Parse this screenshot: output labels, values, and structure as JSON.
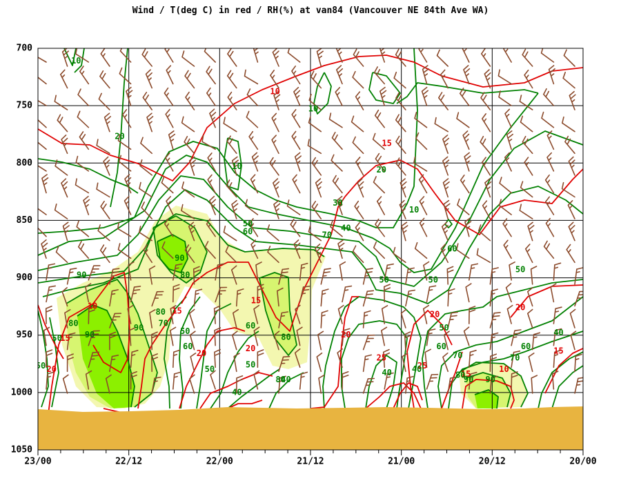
{
  "chart_data": {
    "type": "contour",
    "title": "Wind / T(deg C) in red / RH(%) at van84 (Vancouver NE 84th Ave WA)",
    "y_axis": {
      "ticks": [
        700,
        750,
        800,
        850,
        900,
        950,
        1000,
        1050
      ],
      "ylim": [
        700,
        1050
      ],
      "inverted": true
    },
    "x_axis": {
      "ticks": [
        "23/00",
        "22/12",
        "22/00",
        "21/12",
        "21/00",
        "20/12",
        "20/00"
      ]
    },
    "grid": true,
    "colors": {
      "temperature": "#e00000",
      "rh": "#008000",
      "wind": "#8b4a2b",
      "ground": "#e8b440",
      "fill_70": "#f3f7b0",
      "fill_80": "#d7f570",
      "fill_90": "#8cf000"
    },
    "temperature_labels": [
      {
        "text": "10",
        "t": 0.1,
        "p": 925
      },
      {
        "text": "15",
        "t": 0.05,
        "p": 953
      },
      {
        "text": "20",
        "t": 0.025,
        "p": 980
      },
      {
        "text": "15",
        "t": 0.255,
        "p": 929
      },
      {
        "text": "20",
        "t": 0.3,
        "p": 966
      },
      {
        "text": "15",
        "t": 0.4,
        "p": 920
      },
      {
        "text": "20",
        "t": 0.39,
        "p": 962
      },
      {
        "text": "10",
        "t": 0.435,
        "p": 738
      },
      {
        "text": "15",
        "t": 0.64,
        "p": 783
      },
      {
        "text": "20",
        "t": 0.565,
        "p": 950
      },
      {
        "text": "25",
        "t": 0.63,
        "p": 970
      },
      {
        "text": "20",
        "t": 0.728,
        "p": 932
      },
      {
        "text": "25",
        "t": 0.705,
        "p": 977
      },
      {
        "text": "15",
        "t": 0.785,
        "p": 984
      },
      {
        "text": "10",
        "t": 0.855,
        "p": 980
      },
      {
        "text": "20",
        "t": 0.885,
        "p": 926
      },
      {
        "text": "15",
        "t": 0.955,
        "p": 964
      }
    ],
    "rh_labels": [
      {
        "text": "10",
        "t": 0.07,
        "p": 711
      },
      {
        "text": "20",
        "t": 0.15,
        "p": 777
      },
      {
        "text": "10",
        "t": 0.365,
        "p": 803
      },
      {
        "text": "10",
        "t": 0.505,
        "p": 753
      },
      {
        "text": "20",
        "t": 0.63,
        "p": 806
      },
      {
        "text": "30",
        "t": 0.55,
        "p": 835
      },
      {
        "text": "40",
        "t": 0.565,
        "p": 857
      },
      {
        "text": "10",
        "t": 0.69,
        "p": 841
      },
      {
        "text": "50",
        "t": 0.385,
        "p": 853
      },
      {
        "text": "60",
        "t": 0.385,
        "p": 860
      },
      {
        "text": "70",
        "t": 0.53,
        "p": 863
      },
      {
        "text": "90",
        "t": 0.26,
        "p": 883
      },
      {
        "text": "80",
        "t": 0.27,
        "p": 898
      },
      {
        "text": "90",
        "t": 0.08,
        "p": 898
      },
      {
        "text": "80",
        "t": 0.065,
        "p": 940
      },
      {
        "text": "90",
        "t": 0.095,
        "p": 950
      },
      {
        "text": "50",
        "t": 0.035,
        "p": 953
      },
      {
        "text": "90",
        "t": 0.185,
        "p": 944
      },
      {
        "text": "80",
        "t": 0.225,
        "p": 930
      },
      {
        "text": "70",
        "t": 0.23,
        "p": 940
      },
      {
        "text": "50",
        "t": 0.27,
        "p": 947
      },
      {
        "text": "60",
        "t": 0.275,
        "p": 960
      },
      {
        "text": "60",
        "t": 0.39,
        "p": 942
      },
      {
        "text": "80",
        "t": 0.455,
        "p": 952
      },
      {
        "text": "50",
        "t": 0.39,
        "p": 976
      },
      {
        "text": "50",
        "t": 0.315,
        "p": 980
      },
      {
        "text": "50",
        "t": 0.005,
        "p": 977
      },
      {
        "text": "40",
        "t": 0.365,
        "p": 1000
      },
      {
        "text": "80",
        "t": 0.445,
        "p": 989
      },
      {
        "text": "40",
        "t": 0.455,
        "p": 989
      },
      {
        "text": "60",
        "t": 0.76,
        "p": 875
      },
      {
        "text": "50",
        "t": 0.885,
        "p": 893
      },
      {
        "text": "50",
        "t": 0.635,
        "p": 902
      },
      {
        "text": "50",
        "t": 0.725,
        "p": 902
      },
      {
        "text": "50",
        "t": 0.745,
        "p": 944
      },
      {
        "text": "60",
        "t": 0.74,
        "p": 960
      },
      {
        "text": "70",
        "t": 0.77,
        "p": 968
      },
      {
        "text": "40",
        "t": 0.64,
        "p": 983
      },
      {
        "text": "40",
        "t": 0.695,
        "p": 980
      },
      {
        "text": "80",
        "t": 0.775,
        "p": 985
      },
      {
        "text": "90",
        "t": 0.79,
        "p": 989
      },
      {
        "text": "90",
        "t": 0.83,
        "p": 989
      },
      {
        "text": "60",
        "t": 0.895,
        "p": 960
      },
      {
        "text": "70",
        "t": 0.875,
        "p": 970
      },
      {
        "text": "40",
        "t": 0.955,
        "p": 948
      }
    ]
  }
}
